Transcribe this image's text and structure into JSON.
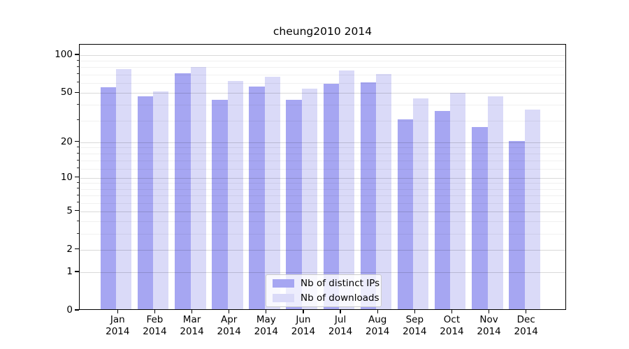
{
  "chart_data": {
    "type": "bar",
    "title": "cheung2010 2014",
    "months": [
      "Jan",
      "Feb",
      "Mar",
      "Apr",
      "May",
      "Jun",
      "Jul",
      "Aug",
      "Sep",
      "Oct",
      "Nov",
      "Dec"
    ],
    "year": "2014",
    "series": [
      {
        "name": "Nb of distinct IPs",
        "color": "#a6a6f2",
        "values": [
          54,
          46,
          70,
          43,
          55,
          43,
          58,
          59,
          30,
          35,
          26,
          20
        ]
      },
      {
        "name": "Nb of downloads",
        "color": "#dadaf8",
        "values": [
          76,
          50,
          78,
          61,
          66,
          53,
          74,
          69,
          44,
          49,
          46,
          36
        ]
      }
    ],
    "yscale": "log1p",
    "ylim": [
      0,
      121
    ],
    "yticks": [
      100,
      50,
      20,
      10,
      5,
      2,
      1,
      0
    ],
    "minor_ticks": [
      3,
      4,
      6,
      7,
      8,
      9,
      12,
      14,
      16,
      18,
      30,
      40,
      60,
      70,
      80,
      90
    ],
    "grid": true,
    "legend_position": "lower center"
  },
  "colors": {
    "major_grid": "rgba(0,0,0,0.15)",
    "minor_grid": "rgba(0,0,0,0.06)",
    "axis": "#000000"
  }
}
